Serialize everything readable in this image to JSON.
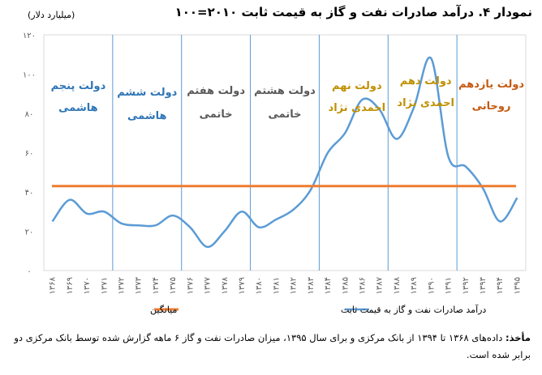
{
  "title": "نمودار ۴. درآمد صادرات نفت و گاز به قیمت ثابت ۲۰۱۰=۱۰۰",
  "unit": "(میلیارد دلار)",
  "source_label": "مأخذ:",
  "source_text": "داده‌های ۱۳۶۸ تا ۱۳۹۴ از بانک مرکزی و برای سال ۱۳۹۵، میزان صادرات نفت و گاز ۶ ماهه گزارش شده توسط بانک مرکزی دو برابر شده است.",
  "chart_data": {
    "type": "line",
    "title": "درآمد صادرات نفت و گاز به قیمت ثابت ۲۰۱۰=۱۰۰",
    "ylabel": "میلیارد دلار",
    "ylim": [
      0,
      120
    ],
    "yticks": [
      0,
      20,
      40,
      60,
      80,
      100,
      120
    ],
    "ytick_labels": [
      "۰",
      "۲۰",
      "۴۰",
      "۶۰",
      "۸۰",
      "۱۰۰",
      "۱۲۰"
    ],
    "x": [
      1368,
      1369,
      1370,
      1371,
      1372,
      1373,
      1374,
      1375,
      1376,
      1377,
      1378,
      1379,
      1380,
      1381,
      1382,
      1383,
      1384,
      1385,
      1386,
      1387,
      1388,
      1389,
      1390,
      1391,
      1392,
      1393,
      1394,
      1395
    ],
    "x_labels": [
      "۱۳۶۸",
      "۱۳۶۹",
      "۱۳۷۰",
      "۱۳۷۱",
      "۱۳۷۲",
      "۱۳۷۳",
      "۱۳۷۴",
      "۱۳۷۵",
      "۱۳۷۶",
      "۱۳۷۷",
      "۱۳۷۸",
      "۱۳۷۹",
      "۱۳۸۰",
      "۱۳۸۱",
      "۱۳۸۲",
      "۱۳۸۳",
      "۱۳۸۴",
      "۱۳۸۵",
      "۱۳۸۶",
      "۱۳۸۷",
      "۱۳۸۸",
      "۱۳۸۹",
      "۱۳۹۰",
      "۱۳۹۱",
      "۱۳۹۲",
      "۱۳۹۳",
      "۱۳۹۴",
      "۱۳۹۵"
    ],
    "grid": true,
    "legend_position": "bottom",
    "series": [
      {
        "name": "درآمد صادرات نفت و گاز به قیمت ثابت",
        "color": "#5b9bd5",
        "values": [
          25,
          36,
          29,
          30,
          24,
          23,
          23,
          28,
          22,
          12,
          20,
          30,
          22,
          26,
          31,
          41,
          60,
          70,
          87,
          82,
          67,
          83,
          108,
          58,
          53,
          42,
          25,
          37
        ]
      },
      {
        "name": "میانگین",
        "color": "#ed7d31",
        "values": [
          43,
          43,
          43,
          43,
          43,
          43,
          43,
          43,
          43,
          43,
          43,
          43,
          43,
          43,
          43,
          43,
          43,
          43,
          43,
          43,
          43,
          43,
          43,
          43,
          43,
          43,
          43,
          43
        ]
      }
    ],
    "period_dividers_after": [
      1371.5,
      1375.5,
      1379.5,
      1383.5,
      1387.5,
      1391.5
    ],
    "annotations": [
      {
        "lines": [
          "دولت پنجم",
          "هاشمی"
        ],
        "color": "#2e75b6"
      },
      {
        "lines": [
          "دولت ششم",
          "هاشمی"
        ],
        "color": "#2e75b6"
      },
      {
        "lines": [
          "دولت هفتم",
          "خاتمی"
        ],
        "color": "#595959"
      },
      {
        "lines": [
          "دولت هشتم",
          "خاتمی"
        ],
        "color": "#595959"
      },
      {
        "lines": [
          "دولت نهم",
          "احمدی نژاد"
        ],
        "color": "#bf9000"
      },
      {
        "lines": [
          "دولت دهم",
          "احمدی نژاد"
        ],
        "color": "#bf9000"
      },
      {
        "lines": [
          "دولت یازدهم",
          "روحانی"
        ],
        "color": "#c55a11"
      }
    ]
  }
}
